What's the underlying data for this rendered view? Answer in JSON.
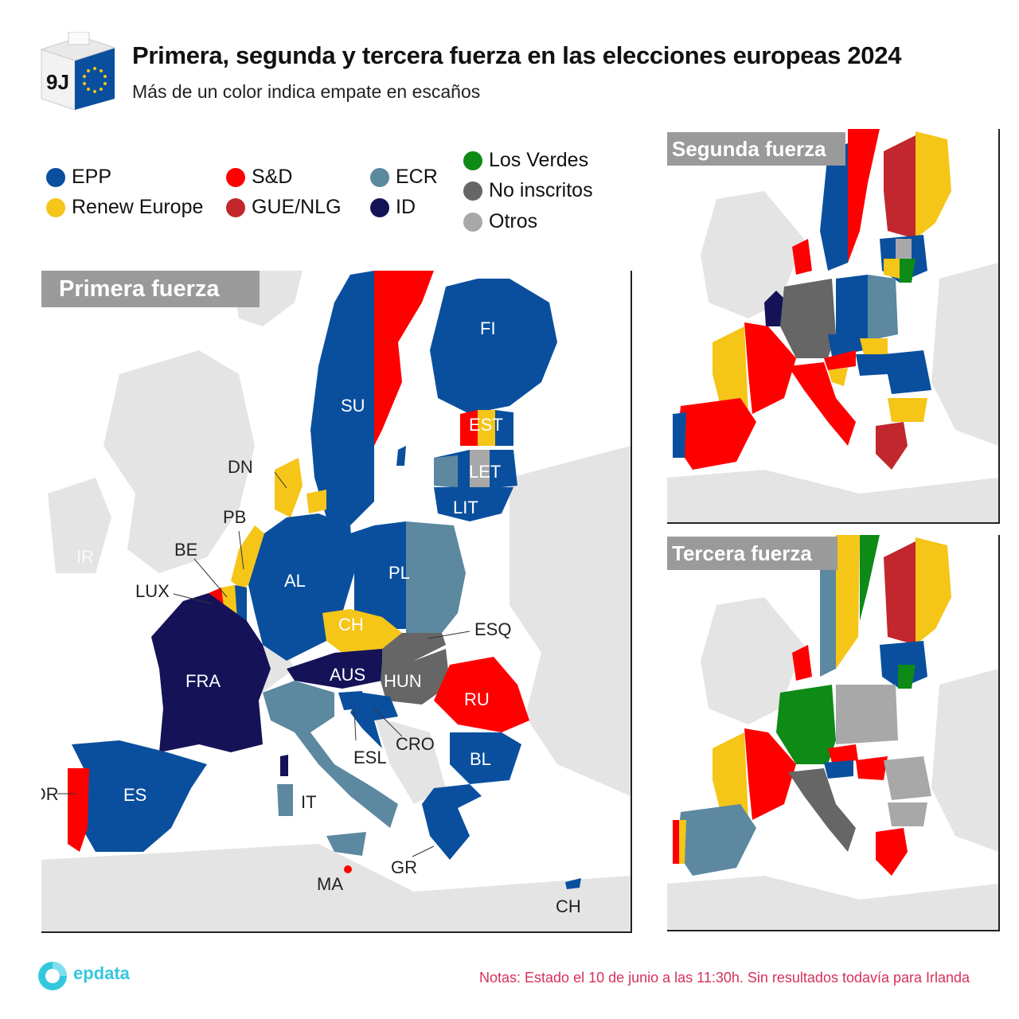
{
  "header": {
    "ballot_text": "9J",
    "title": "Primera, segunda y tercera fuerza en las elecciones europeas 2024",
    "subtitle": "Más de un color indica empate en escaños"
  },
  "legend": [
    {
      "label": "EPP",
      "color": "#0a4f9e"
    },
    {
      "label": "Renew Europe",
      "color": "#f5c518"
    },
    {
      "label": "S&D",
      "color": "#ff0000"
    },
    {
      "label": "GUE/NLG",
      "color": "#c1272d"
    },
    {
      "label": "ECR",
      "color": "#5c88a0"
    },
    {
      "label": "ID",
      "color": "#151257"
    },
    {
      "label": "Los Verdes",
      "color": "#0e8a16"
    },
    {
      "label": "No inscritos",
      "color": "#666666"
    },
    {
      "label": "Otros",
      "color": "#a8a8a8"
    }
  ],
  "panels": {
    "primera": {
      "title": "Primera fuerza"
    },
    "segunda": {
      "title": "Segunda fuerza"
    },
    "tercera": {
      "title": "Tercera fuerza"
    }
  },
  "labels": {
    "FI": "FI",
    "SU": "SU",
    "EST": "EST",
    "LET": "LET",
    "LIT": "LIT",
    "DN": "DN",
    "PB": "PB",
    "BE": "BE",
    "LUX": "LUX",
    "IR": "IR",
    "AL": "AL",
    "PL": "PL",
    "CH_CZ": "CH",
    "ESQ": "ESQ",
    "AUS": "AUS",
    "HUN": "HUN",
    "RU": "RU",
    "FRA": "FRA",
    "ESL": "ESL",
    "CRO": "CRO",
    "BL": "BL",
    "ES": "ES",
    "POR": "POR",
    "IT": "IT",
    "GR": "GR",
    "MA": "MA",
    "CH_CY": "CH"
  },
  "results": {
    "primera": {
      "SU": "EPP",
      "FI": "EPP",
      "EST": [
        "S&D",
        "Renew Europe",
        "EPP"
      ],
      "LET": [
        "EPP",
        "Otros"
      ],
      "LIT": "EPP",
      "DN": "Renew Europe",
      "PB": "Renew Europe",
      "BE": [
        "S&D",
        "Renew Europe",
        "EPP"
      ],
      "LUX": "EPP",
      "AL": "EPP",
      "PL": [
        "EPP",
        "ECR"
      ],
      "CZ": "Renew Europe",
      "SK": "No inscritos",
      "AUS": "ID",
      "HUN": "No inscritos",
      "RU": "S&D",
      "FRA": "ID",
      "ESL": "EPP",
      "CRO": "EPP",
      "BL": "EPP",
      "ES": "EPP",
      "POR": "S&D",
      "IT": "ECR",
      "GR": "EPP",
      "MA": [
        "EPP",
        "S&D"
      ],
      "CY": "EPP"
    },
    "segunda": {
      "SU": "S&D",
      "FI": "GUE/NLG",
      "FRA": "S&D",
      "ES": "S&D",
      "IT": "S&D",
      "AL": "No inscritos",
      "PL": "EPP",
      "RU": "EPP",
      "BL": "Renew Europe",
      "GR": "GUE/NLG",
      "HUN": "EPP",
      "POR": "EPP"
    },
    "tercera": {
      "SU": "Renew Europe",
      "FI": "GUE/NLG",
      "FRA": "S&D",
      "ES": "ECR",
      "IT": "No inscritos",
      "AL": "Los Verdes",
      "PL": "Otros",
      "RU": "Otros",
      "BL": "Otros",
      "GR": "S&D",
      "POR": "S&D"
    }
  },
  "notes": "Notas: Estado el 10 de junio a las 11:30h. Sin resultados todavía para Irlanda",
  "logo_text": "epdata"
}
